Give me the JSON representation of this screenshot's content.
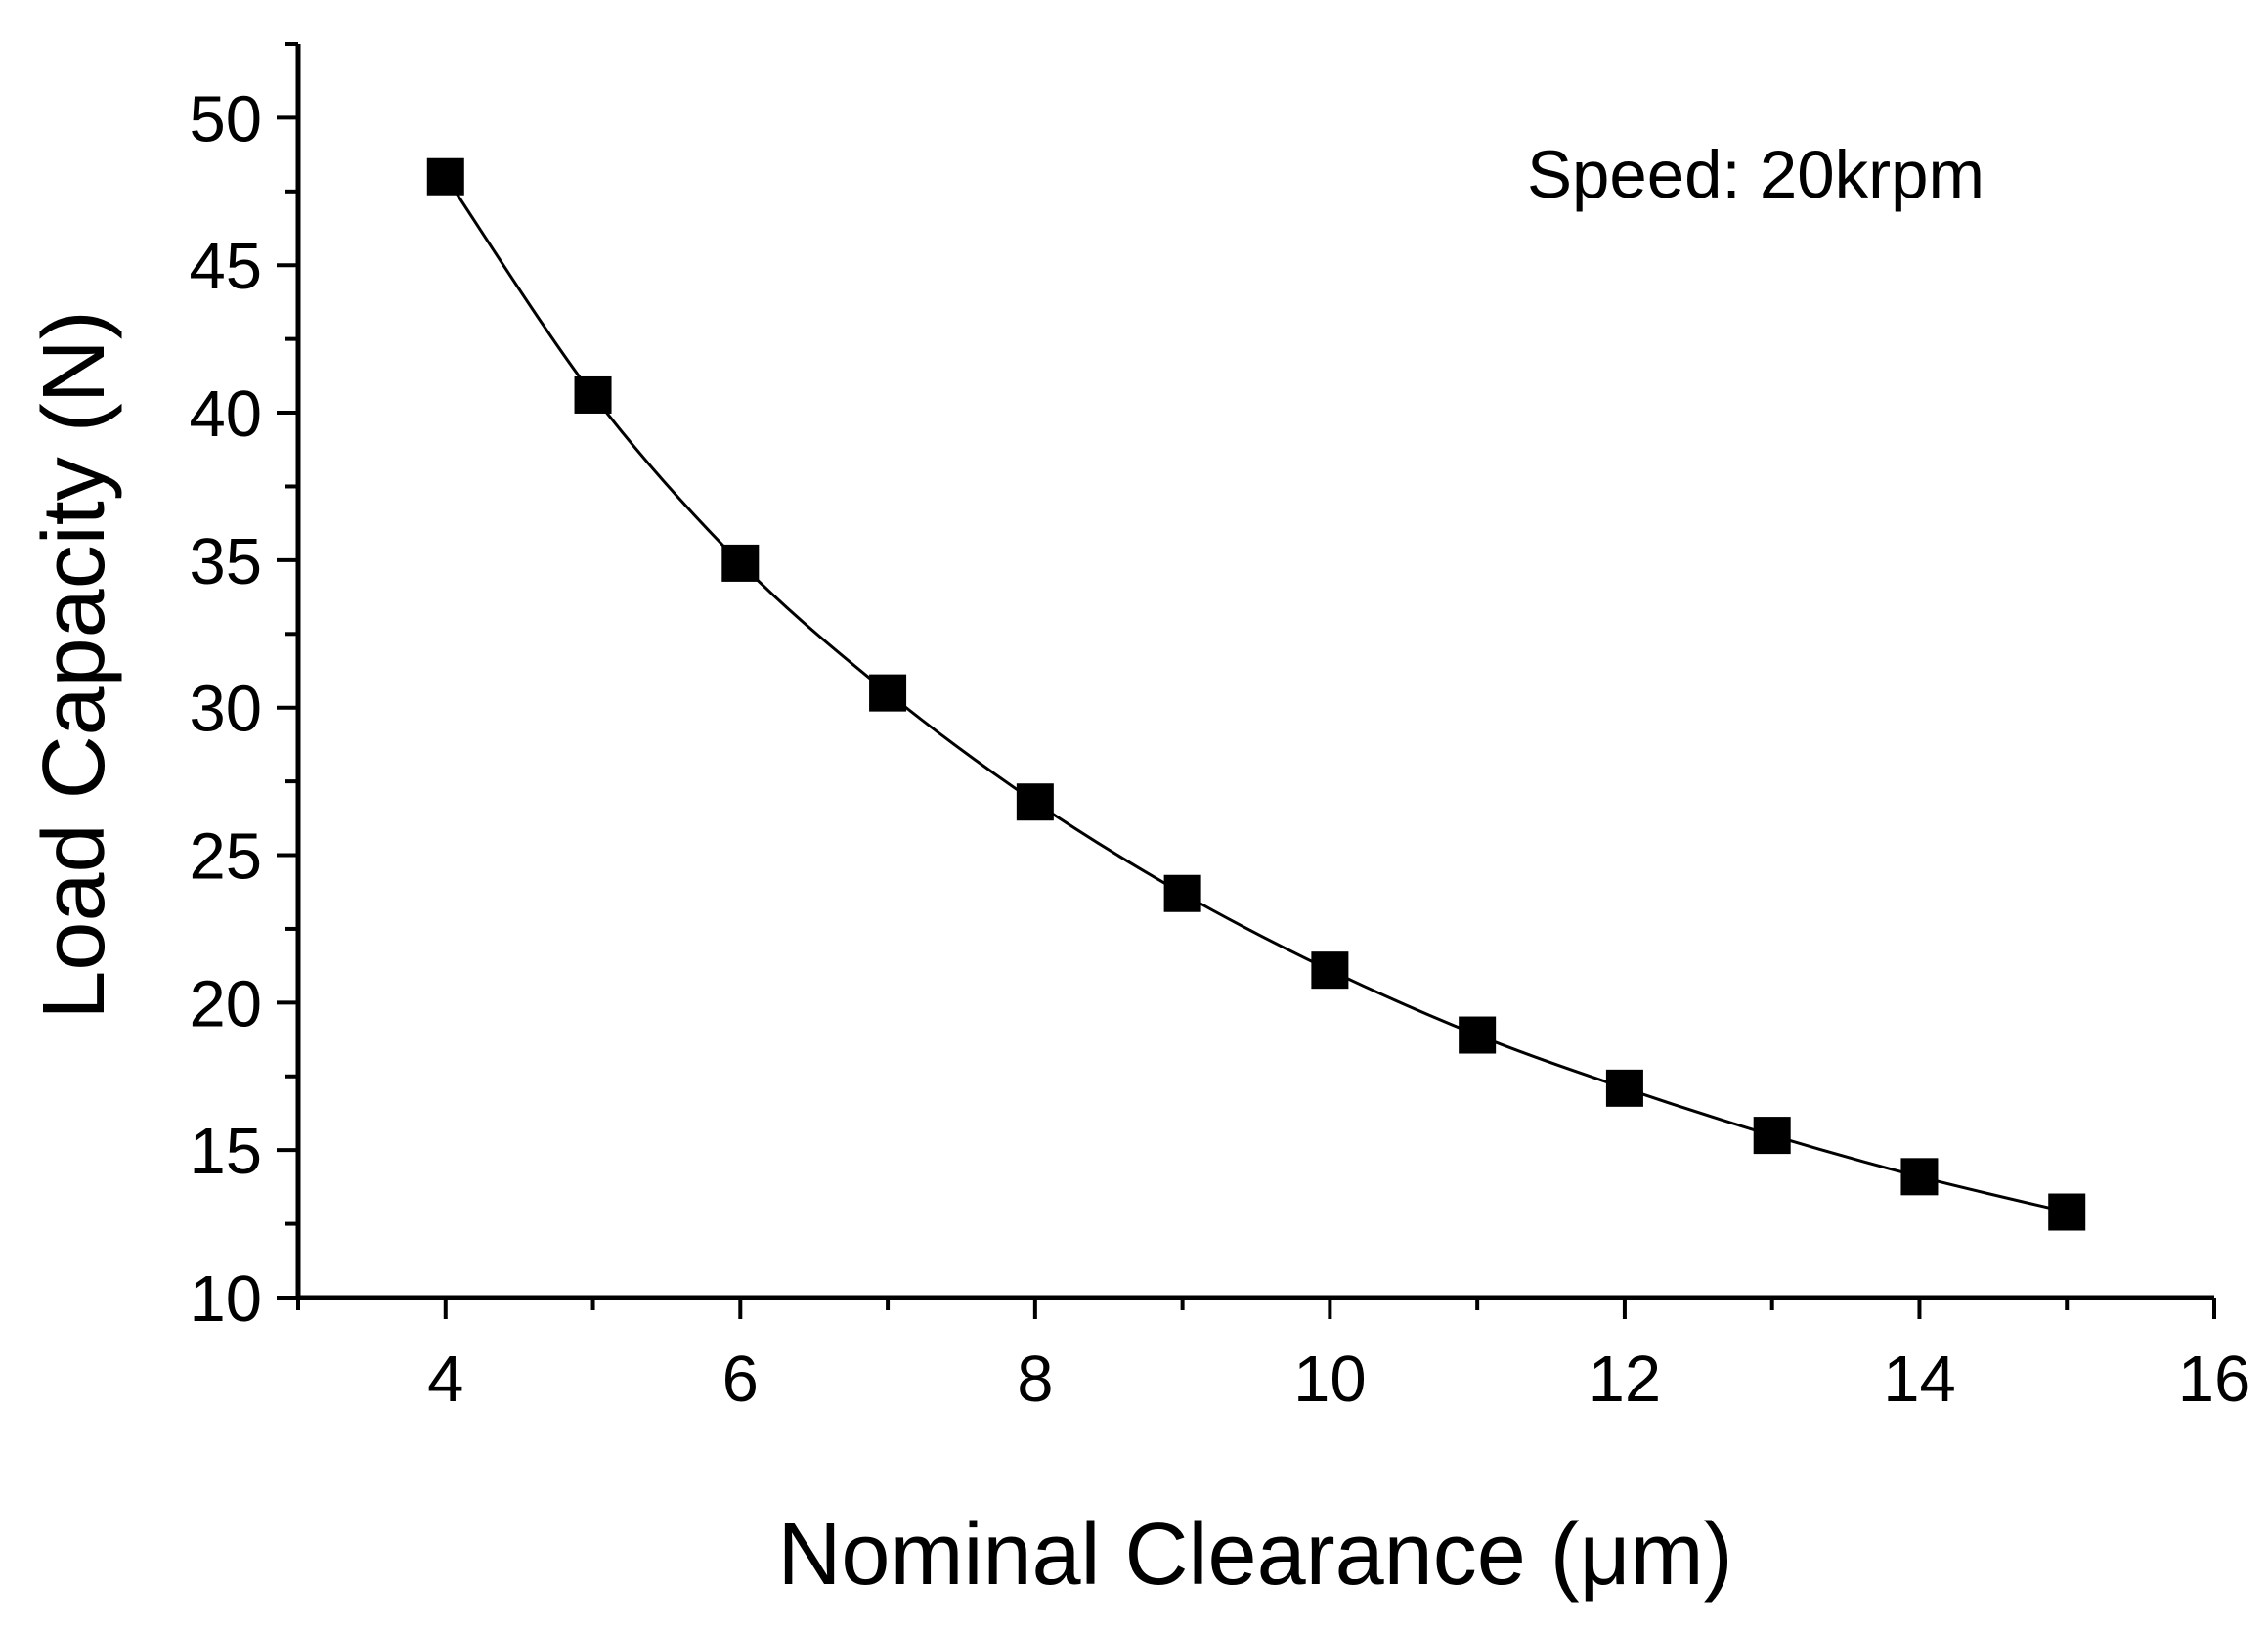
{
  "chart_data": {
    "type": "line",
    "title": "",
    "xlabel": "Nominal Clearance (μm)",
    "ylabel": "Load Capacity (N)",
    "xlim": [
      3,
      16
    ],
    "ylim": [
      10,
      52.5
    ],
    "xticks": [
      4,
      6,
      8,
      10,
      12,
      14,
      16
    ],
    "yticks": [
      10,
      15,
      20,
      25,
      30,
      35,
      40,
      45,
      50
    ],
    "x_minor_step": 1,
    "y_minor_step": 2.5,
    "grid": false,
    "annotation": "Speed: 20krpm",
    "series": [
      {
        "name": "Load Capacity",
        "marker": "square",
        "color": "#000000",
        "x": [
          4,
          5,
          6,
          7,
          8,
          9,
          10,
          11,
          12,
          13,
          14,
          15
        ],
        "y": [
          48.0,
          40.6,
          34.9,
          30.5,
          26.8,
          23.7,
          21.1,
          18.9,
          17.1,
          15.5,
          14.1,
          12.9
        ]
      }
    ]
  }
}
